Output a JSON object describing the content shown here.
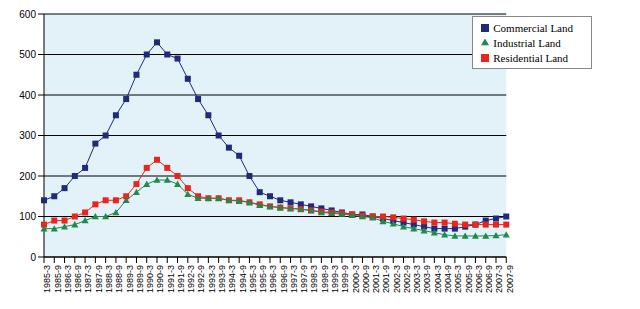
{
  "chart_data": {
    "type": "line",
    "categories": [
      "1985-3",
      "1985-9",
      "1986-3",
      "1986-9",
      "1987-3",
      "1987-9",
      "1988-3",
      "1988-9",
      "1989-3",
      "1989-9",
      "1990-3",
      "1990-9",
      "1991-3",
      "1991-9",
      "1992-3",
      "1992-9",
      "1993-3",
      "1993-9",
      "1994-3",
      "1994-9",
      "1995-3",
      "1995-9",
      "1996-3",
      "1996-9",
      "1997-3",
      "1997-9",
      "1998-3",
      "1998-9",
      "1999-3",
      "1999-9",
      "2000-3",
      "2000-9",
      "2001-3",
      "2001-9",
      "2002-3",
      "2002-9",
      "2003-3",
      "2003-9",
      "2004-3",
      "2004-9",
      "2005-3",
      "2005-9",
      "2006-3",
      "2006-9",
      "2007-3",
      "2007-9"
    ],
    "series": [
      {
        "name": "Commercial Land",
        "color": "#1f2a7a",
        "marker": "square",
        "values": [
          140,
          150,
          170,
          200,
          220,
          280,
          300,
          350,
          390,
          450,
          500,
          530,
          500,
          490,
          440,
          390,
          350,
          300,
          270,
          250,
          200,
          160,
          150,
          140,
          135,
          130,
          125,
          120,
          115,
          110,
          105,
          105,
          100,
          95,
          90,
          85,
          80,
          75,
          70,
          70,
          70,
          75,
          80,
          90,
          95,
          100
        ]
      },
      {
        "name": "Residential Land",
        "color": "#e8261c",
        "marker": "square",
        "values": [
          80,
          90,
          90,
          100,
          110,
          130,
          140,
          140,
          150,
          180,
          220,
          240,
          220,
          200,
          170,
          150,
          145,
          145,
          140,
          140,
          135,
          130,
          125,
          122,
          120,
          118,
          115,
          112,
          110,
          108,
          105,
          102,
          100,
          100,
          98,
          95,
          92,
          88,
          85,
          85,
          82,
          80,
          80,
          80,
          80,
          80
        ]
      },
      {
        "name": "Industrial Land",
        "color": "#1e8a4c",
        "marker": "triangle",
        "values": [
          70,
          70,
          75,
          80,
          90,
          100,
          100,
          110,
          140,
          160,
          180,
          190,
          190,
          180,
          155,
          145,
          145,
          145,
          140,
          138,
          135,
          128,
          125,
          122,
          120,
          118,
          115,
          110,
          108,
          106,
          103,
          100,
          97,
          88,
          82,
          75,
          70,
          65,
          60,
          55,
          52,
          52,
          52,
          52,
          53,
          55
        ]
      }
    ],
    "ylim": [
      0,
      600
    ],
    "yticks": [
      0,
      100,
      200,
      300,
      400,
      500,
      600
    ],
    "grid": true,
    "legend": "top-right"
  }
}
